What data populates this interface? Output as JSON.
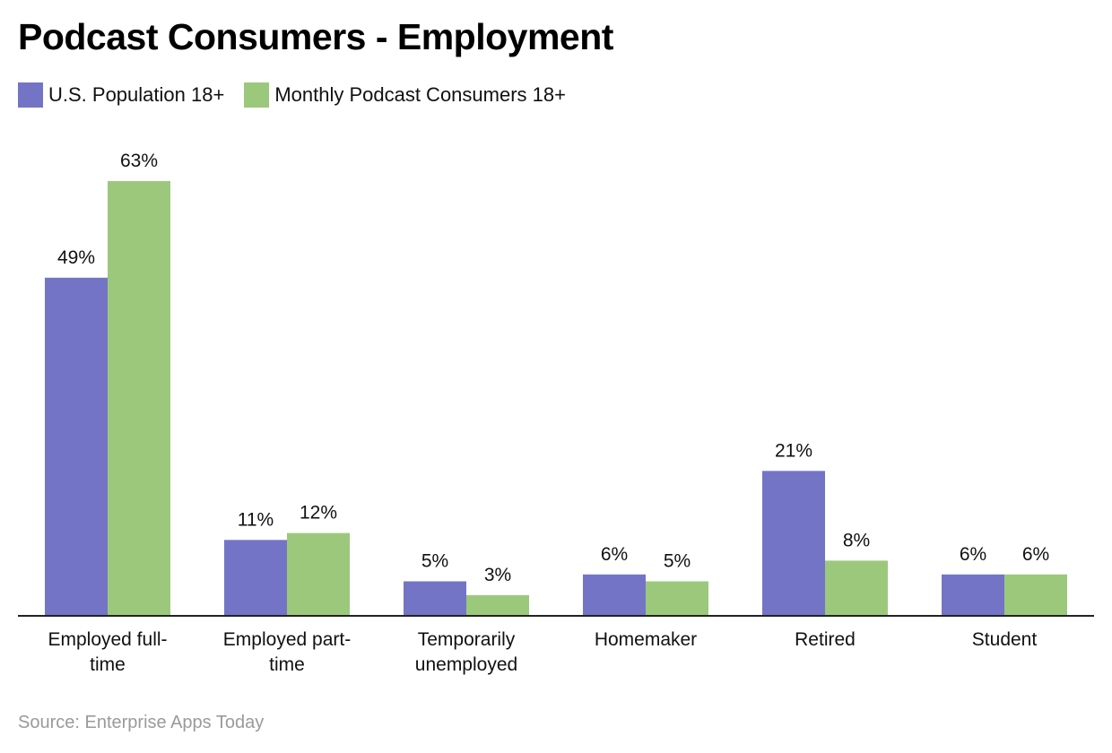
{
  "chart_data": {
    "type": "bar",
    "title": "Podcast Consumers - Employment",
    "categories": [
      [
        "Employed full-",
        "time"
      ],
      [
        "Employed part-",
        "time"
      ],
      [
        "Temporarily",
        "unemployed"
      ],
      [
        "Homemaker"
      ],
      [
        "Retired"
      ],
      [
        "Student"
      ]
    ],
    "series": [
      {
        "name": "U.S. Population 18+",
        "color": "#7474c6",
        "values": [
          49,
          11,
          5,
          6,
          21,
          6
        ],
        "labels": [
          "49%",
          "11%",
          "5%",
          "6%",
          "21%",
          "6%"
        ]
      },
      {
        "name": "Monthly Podcast Consumers 18+",
        "color": "#9cc87c",
        "values": [
          63,
          12,
          3,
          5,
          8,
          6
        ],
        "labels": [
          "63%",
          "12%",
          "3%",
          "5%",
          "8%",
          "6%"
        ]
      }
    ],
    "ylim": [
      0,
      63
    ],
    "xlabel": "",
    "ylabel": "",
    "grid": false,
    "legend_position": "top-left"
  },
  "source": "Source: Enterprise Apps Today"
}
